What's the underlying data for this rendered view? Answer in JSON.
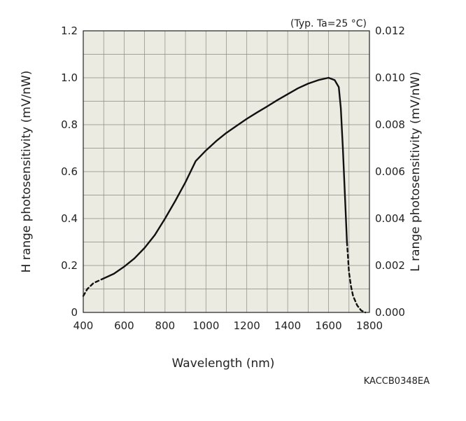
{
  "chart_data": {
    "type": "line",
    "title": "",
    "condition_note": "(Typ. Ta=25 °C)",
    "figure_code": "KACCB0348EA",
    "xlabel": "Wavelength (nm)",
    "ylabel_left": "H range photosensitivity (mV/nW)",
    "ylabel_right": "L range photosensitivity (mV/nW)",
    "xlim": [
      400,
      1800
    ],
    "ylim_left": [
      0,
      1.2
    ],
    "ylim_right": [
      0,
      0.012
    ],
    "x_ticks": [
      "400",
      "600",
      "800",
      "1000",
      "1200",
      "1400",
      "1600",
      "1800"
    ],
    "y_ticks_left": [
      "0",
      "0.2",
      "0.4",
      "0.6",
      "0.8",
      "1.0",
      "1.2"
    ],
    "y_ticks_right": [
      "0.000",
      "0.002",
      "0.004",
      "0.006",
      "0.008",
      "0.010",
      "0.012"
    ],
    "grid": true,
    "series": [
      {
        "x": [
          400,
          420,
          450,
          500,
          550,
          600,
          650,
          700,
          750,
          800,
          850,
          900,
          950,
          1000,
          1050,
          1100,
          1150,
          1200,
          1250,
          1300,
          1350,
          1400,
          1450,
          1500,
          1550,
          1600,
          1630,
          1650,
          1660,
          1670,
          1680,
          1690,
          1700,
          1710,
          1720,
          1740,
          1760,
          1780
        ],
        "y": [
          0.07,
          0.1,
          0.125,
          0.145,
          0.165,
          0.195,
          0.23,
          0.275,
          0.33,
          0.4,
          0.475,
          0.555,
          0.645,
          0.69,
          0.73,
          0.765,
          0.795,
          0.825,
          0.852,
          0.878,
          0.905,
          0.93,
          0.955,
          0.975,
          0.99,
          1.0,
          0.99,
          0.96,
          0.87,
          0.7,
          0.5,
          0.3,
          0.17,
          0.11,
          0.07,
          0.03,
          0.008,
          0.0
        ],
        "dashed_x_ranges": [
          [
            400,
            480
          ],
          [
            1690,
            1780
          ]
        ]
      }
    ]
  }
}
